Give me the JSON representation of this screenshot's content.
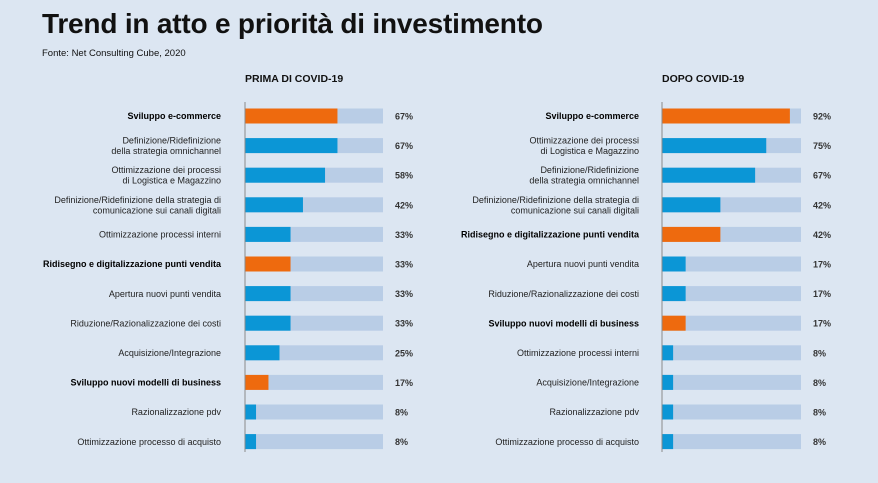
{
  "title": "Trend in atto e priorità di investimento",
  "source": "Fonte: Net Consulting Cube, 2020",
  "colors": {
    "track": "#b9cde6",
    "normal": "#0b96d6",
    "highlight": "#ee6a0e",
    "axis": "#8a8a8a"
  },
  "chart_data": [
    {
      "type": "bar",
      "orientation": "horizontal",
      "title": "PRIMA DI COVID-19",
      "xlim": [
        0,
        100
      ],
      "unit": "%",
      "categories": [
        [
          "Sviluppo e-commerce"
        ],
        [
          "Definizione/Ridefinizione",
          "della strategia omnichannel"
        ],
        [
          "Ottimizzazione dei processi",
          "di Logistica e Magazzino"
        ],
        [
          "Definizione/Ridefinizione della strategia di",
          "comunicazione sui canali digitali"
        ],
        [
          "Ottimizzazione processi interni"
        ],
        [
          "Ridisegno e digitalizzazione punti vendita"
        ],
        [
          "Apertura nuovi punti vendita"
        ],
        [
          "Riduzione/Razionalizzazione dei costi"
        ],
        [
          "Acquisizione/Integrazione"
        ],
        [
          "Sviluppo nuovi modelli di business"
        ],
        [
          "Razionalizzazione pdv"
        ],
        [
          "Ottimizzazione processo di acquisto"
        ]
      ],
      "values": [
        67,
        67,
        58,
        42,
        33,
        33,
        33,
        33,
        25,
        17,
        8,
        8
      ],
      "value_labels": [
        "67%",
        "67%",
        "58%",
        "42%",
        "33%",
        "33%",
        "33%",
        "33%",
        "25%",
        "17%",
        "8%",
        "8%"
      ],
      "highlighted": [
        true,
        false,
        false,
        false,
        false,
        true,
        false,
        false,
        false,
        true,
        false,
        false
      ]
    },
    {
      "type": "bar",
      "orientation": "horizontal",
      "title": "DOPO COVID-19",
      "xlim": [
        0,
        100
      ],
      "unit": "%",
      "categories": [
        [
          "Sviluppo e-commerce"
        ],
        [
          "Ottimizzazione dei processi",
          "di Logistica e Magazzino"
        ],
        [
          "Definizione/Ridefinizione",
          "della strategia omnichannel"
        ],
        [
          "Definizione/Ridefinizione della strategia di",
          "comunicazione sui canali digitali"
        ],
        [
          "Ridisegno e digitalizzazione punti vendita"
        ],
        [
          "Apertura nuovi punti vendita"
        ],
        [
          "Riduzione/Razionalizzazione dei costi"
        ],
        [
          "Sviluppo nuovi modelli di business"
        ],
        [
          "Ottimizzazione processi interni"
        ],
        [
          "Acquisizione/Integrazione"
        ],
        [
          "Razionalizzazione pdv"
        ],
        [
          "Ottimizzazione processo di acquisto"
        ]
      ],
      "values": [
        92,
        75,
        67,
        42,
        42,
        17,
        17,
        17,
        8,
        8,
        8,
        8
      ],
      "value_labels": [
        "92%",
        "75%",
        "67%",
        "42%",
        "42%",
        "17%",
        "17%",
        "17%",
        "8%",
        "8%",
        "8%",
        "8%"
      ],
      "highlighted": [
        true,
        false,
        false,
        false,
        true,
        false,
        false,
        true,
        false,
        false,
        false,
        false
      ]
    }
  ]
}
